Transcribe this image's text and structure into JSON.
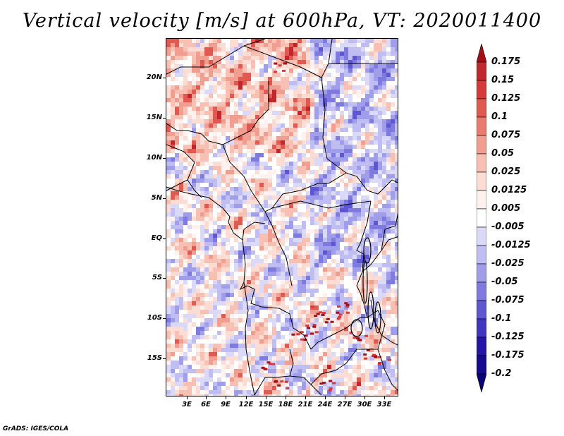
{
  "title": "Vertical velocity [m/s] at 600hPa, VT: 2020011400",
  "footer": "GrADS: IGES/COLA",
  "map": {
    "lat_labels": [
      "20N",
      "15N",
      "10N",
      "5N",
      "EQ",
      "5S",
      "10S",
      "15S"
    ],
    "lon_labels": [
      "3E",
      "6E",
      "9E",
      "12E",
      "15E",
      "18E",
      "21E",
      "24E",
      "27E",
      "30E",
      "33E"
    ]
  },
  "colorbar": {
    "labels": [
      "0.175",
      "0.15",
      "0.125",
      "0.1",
      "0.075",
      "0.05",
      "0.025",
      "0.0125",
      "0.005",
      "-0.005",
      "-0.0125",
      "-0.025",
      "-0.05",
      "-0.075",
      "-0.1",
      "-0.125",
      "-0.175",
      "-0.2"
    ],
    "colors": [
      "#a50f15",
      "#c1272d",
      "#d7383a",
      "#e05a52",
      "#ea7b6f",
      "#f19d90",
      "#f8bfb3",
      "#fcdcd3",
      "#fff2ee",
      "#ffffff",
      "#dad9f7",
      "#bfbdf1",
      "#a09dea",
      "#7f7ae0",
      "#5f57d2",
      "#4036c1",
      "#2515a9",
      "#170a8e",
      "#0b0477"
    ]
  }
}
